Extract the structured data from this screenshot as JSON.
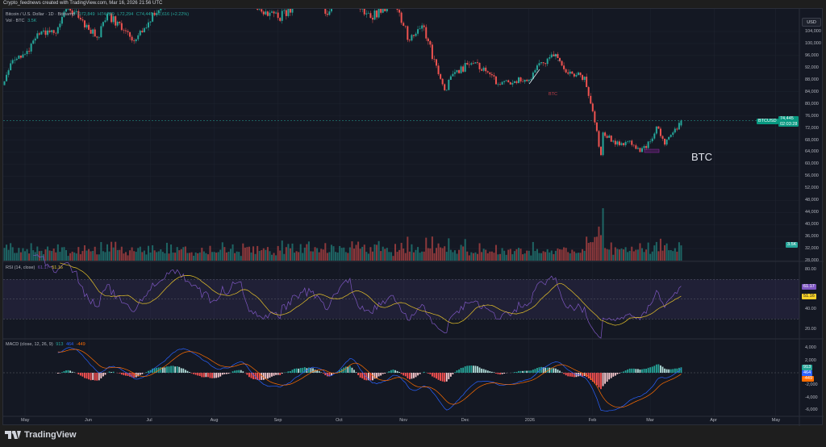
{
  "header": {
    "watermark": "Crypto_feednews created with TradingView.com, Mar 16, 2026 21:56 UTC",
    "currency_button": "USD"
  },
  "legend": {
    "symbol": "Bitcoin / U.S. Dollar · 1D · Bitstamp",
    "open": "O72,849",
    "high": "H74,789",
    "low": "L72,294",
    "close": "C74,445",
    "change": "+1,616 (+2.22%)",
    "volume_label": "Vol · BTC",
    "volume_value": "3.5K"
  },
  "price_axis": {
    "ticks": [
      "104,000",
      "100,000",
      "96,000",
      "92,000",
      "88,000",
      "84,000",
      "80,000",
      "76,000",
      "72,000",
      "68,000",
      "64,000",
      "60,000",
      "56,000",
      "52,000",
      "48,000",
      "44,000",
      "40,000",
      "36,000",
      "32,000",
      "28,000"
    ],
    "symbol_tag": "BTCUSD",
    "last_price": "74,445",
    "countdown": "02:03:28",
    "volume_tag": "3.5K"
  },
  "rsi": {
    "label": "RSI (14, close)",
    "value": "61.17",
    "ma_value": "51.16",
    "ticks": [
      "80.00",
      "40.00",
      "20.00"
    ]
  },
  "macd": {
    "label": "MACD (close, 12, 26, 9)",
    "histogram": "913",
    "macd": "464",
    "signal": "-449",
    "ticks": [
      "4,000",
      "2,000",
      "-2,000",
      "-4,000",
      "-6,000"
    ]
  },
  "time_axis": [
    "May",
    "Jun",
    "Jul",
    "Aug",
    "Sep",
    "Oct",
    "Nov",
    "Dec",
    "2026",
    "Feb",
    "Mar",
    "Apr",
    "May"
  ],
  "annotations": {
    "small_label": "BTC",
    "big_label": "BTC"
  },
  "colors": {
    "up": "#26a69a",
    "down": "#ef5350",
    "rsi": "#7e57c2",
    "rsi_ma": "#e6c229",
    "macd": "#2962ff",
    "signal": "#ff6d00",
    "background": "#141823"
  },
  "brand": "TradingView",
  "chart_data": {
    "type": "candlestick",
    "interval": "1D",
    "price_range": [
      28000,
      104000
    ],
    "grid": true,
    "close_anchors": [
      [
        "2025-04-21",
        87500
      ],
      [
        "2025-04-25",
        94500
      ],
      [
        "2025-05-01",
        96500
      ],
      [
        "2025-05-08",
        103000
      ],
      [
        "2025-05-15",
        103500
      ],
      [
        "2025-05-22",
        111500
      ],
      [
        "2025-05-28",
        108000
      ],
      [
        "2025-06-05",
        102000
      ],
      [
        "2025-06-10",
        110000
      ],
      [
        "2025-06-17",
        104500
      ],
      [
        "2025-06-22",
        101000
      ],
      [
        "2025-06-30",
        107000
      ],
      [
        "2025-07-10",
        116000
      ],
      [
        "2025-07-14",
        121000
      ],
      [
        "2025-07-31",
        115500
      ],
      [
        "2025-08-13",
        123000
      ],
      [
        "2025-08-20",
        113000
      ],
      [
        "2025-09-01",
        108500
      ],
      [
        "2025-09-10",
        113500
      ],
      [
        "2025-09-18",
        117000
      ],
      [
        "2025-09-25",
        109500
      ],
      [
        "2025-10-06",
        124500
      ],
      [
        "2025-10-10",
        113000
      ],
      [
        "2025-10-16",
        108500
      ],
      [
        "2025-10-27",
        114500
      ],
      [
        "2025-11-04",
        101000
      ],
      [
        "2025-11-10",
        106000
      ],
      [
        "2025-11-20",
        86500
      ],
      [
        "2025-11-21",
        84500
      ],
      [
        "2025-11-26",
        90500
      ],
      [
        "2025-12-03",
        93000
      ],
      [
        "2025-12-10",
        92000
      ],
      [
        "2025-12-17",
        86500
      ],
      [
        "2025-12-25",
        87500
      ],
      [
        "2026-01-01",
        88000
      ],
      [
        "2026-01-06",
        93500
      ],
      [
        "2026-01-14",
        96500
      ],
      [
        "2026-01-20",
        90000
      ],
      [
        "2026-01-28",
        89000
      ],
      [
        "2026-02-01",
        77500
      ],
      [
        "2026-02-05",
        63000
      ],
      [
        "2026-02-06",
        70500
      ],
      [
        "2026-02-12",
        66500
      ],
      [
        "2026-02-18",
        67500
      ],
      [
        "2026-02-24",
        64000
      ],
      [
        "2026-03-02",
        68500
      ],
      [
        "2026-03-04",
        72500
      ],
      [
        "2026-03-08",
        66500
      ],
      [
        "2026-03-12",
        70500
      ],
      [
        "2026-03-16",
        74445
      ]
    ],
    "last_candle": {
      "open": 72849,
      "high": 74789,
      "low": 72294,
      "close": 74445,
      "volume_k": 3.5
    }
  }
}
